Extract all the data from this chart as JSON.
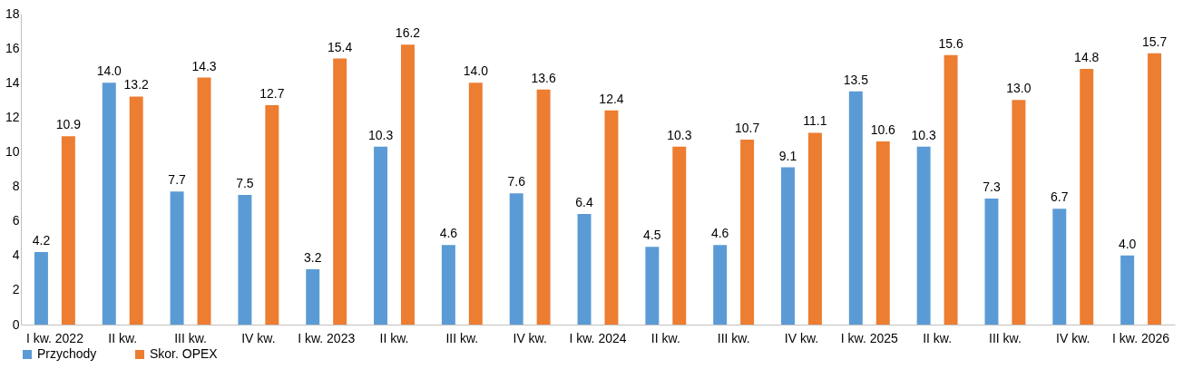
{
  "chart_data": {
    "type": "bar",
    "categories": [
      "I kw. 2022",
      "II kw.",
      "III kw.",
      "IV kw.",
      "I kw. 2023",
      "II kw.",
      "III kw.",
      "IV kw.",
      "I kw. 2024",
      "II kw.",
      "III kw.",
      "IV kw.",
      "I kw. 2025",
      "II kw.",
      "III kw.",
      "IV kw.",
      "I kw. 2026"
    ],
    "series": [
      {
        "name": "Przychody",
        "color": "#5b9bd5",
        "values": [
          4.2,
          14.0,
          7.7,
          7.5,
          3.2,
          10.3,
          4.6,
          7.6,
          6.4,
          4.5,
          4.6,
          9.1,
          13.5,
          10.3,
          7.3,
          6.7,
          4.0
        ],
        "value_labels": [
          "4.2",
          "14.0",
          "7.7",
          "7.5",
          "3.2",
          "10.3",
          "4.6",
          "7.6",
          "6.4",
          "4.5",
          "4.6",
          "9.1",
          "13.5",
          "10.3",
          "7.3",
          "6.7",
          "4.0"
        ]
      },
      {
        "name": "Skor. OPEX",
        "color": "#ed7d31",
        "values": [
          10.9,
          13.2,
          14.3,
          12.7,
          15.4,
          16.2,
          14.0,
          13.6,
          12.4,
          10.3,
          10.7,
          11.1,
          10.6,
          15.6,
          13.0,
          14.8,
          15.7
        ],
        "value_labels": [
          "10.9",
          "13.2",
          "14.3",
          "12.7",
          "15.4",
          "16.2",
          "14.0",
          "13.6",
          "12.4",
          "10.3",
          "10.7",
          "11.1",
          "10.6",
          "15.6",
          "13.0",
          "14.8",
          "15.7"
        ]
      }
    ],
    "ylim": [
      0,
      18
    ],
    "yticks": [
      0,
      2,
      4,
      6,
      8,
      10,
      12,
      14,
      16,
      18
    ],
    "grid": false,
    "legend": "bottom"
  }
}
